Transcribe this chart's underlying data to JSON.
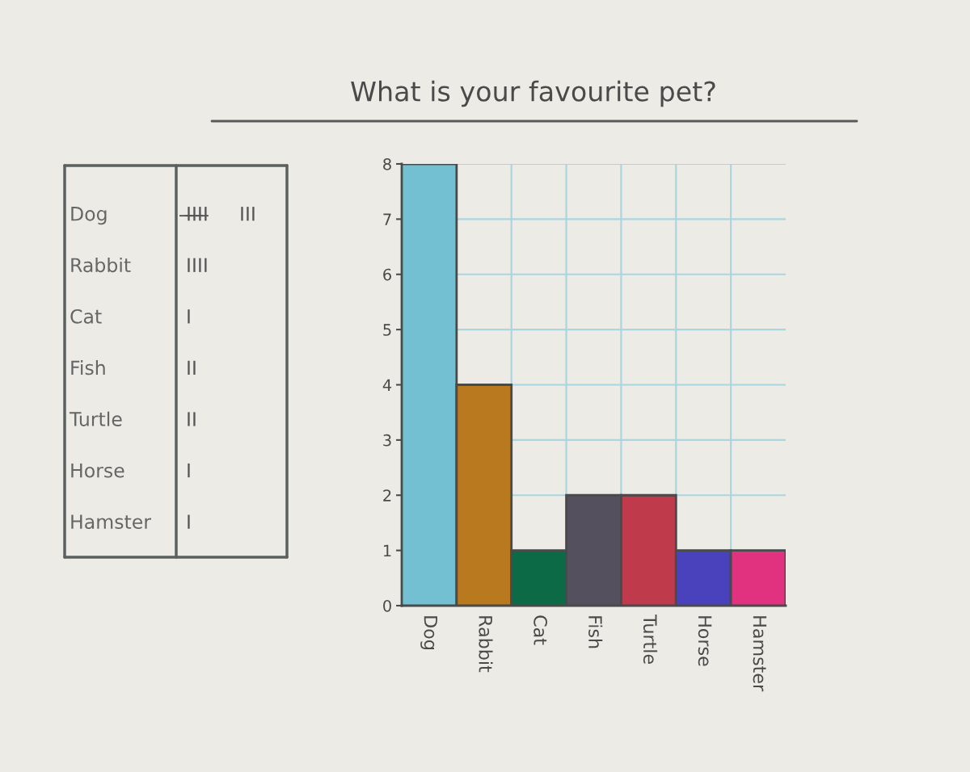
{
  "chart_data": [
    {
      "type": "other",
      "categories": [
        "Dog",
        "Rabbit",
        "Cat",
        "Fish",
        "Turtle",
        "Horse",
        "Hamster"
      ],
      "annotations": [
        "I̶I̶I̶I̶ III",
        "IIII",
        "I",
        "II",
        "II",
        "I",
        "I"
      ]
    },
    {
      "type": "bar",
      "title": "What is your favourite pet?",
      "categories": [
        "Dog",
        "Rabbit",
        "Cat",
        "Fish",
        "Turtle",
        "Horse",
        "Hamster"
      ],
      "values": [
        8,
        4,
        1,
        2,
        2,
        1,
        1
      ],
      "colors": [
        "#72c0d2",
        "#b8791f",
        "#0c6a47",
        "#55505e",
        "#bf3b4c",
        "#4a42bd",
        "#e0327f"
      ],
      "ylim": [
        0,
        8
      ],
      "yticks": [
        0,
        1,
        2,
        3,
        4,
        5,
        6,
        7,
        8
      ],
      "grid": true
    }
  ]
}
